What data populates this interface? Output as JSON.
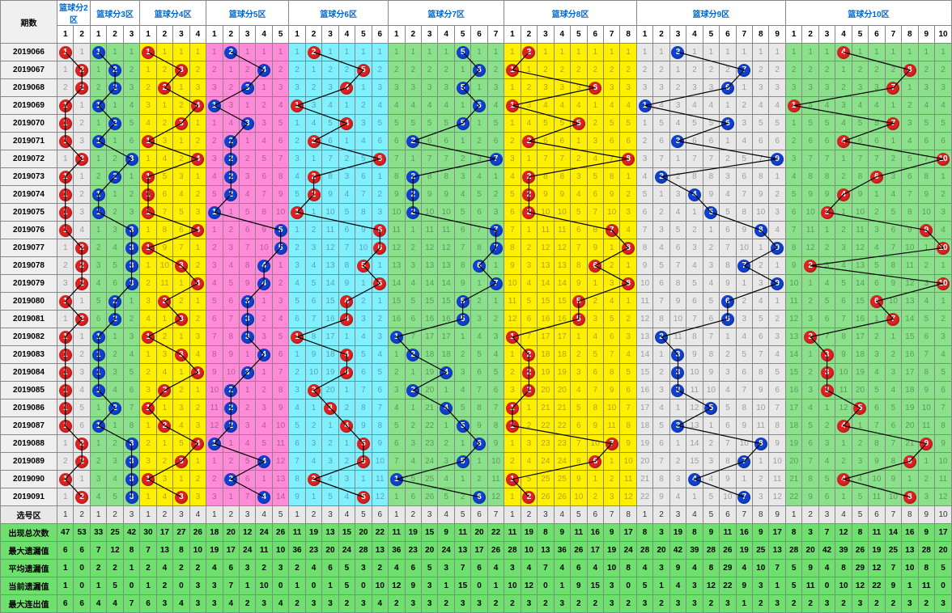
{
  "header": {
    "period_label": "期数"
  },
  "zones": [
    {
      "title": "篮球分2区",
      "cols": [
        1,
        2
      ],
      "bg": "#e8e8e8",
      "ball": "red"
    },
    {
      "title": "篮球分3区",
      "cols": [
        1,
        2,
        3
      ],
      "bg": "#8be08b",
      "ball": "blue"
    },
    {
      "title": "篮球分4区",
      "cols": [
        1,
        2,
        3,
        4
      ],
      "bg": "#fff000",
      "ball": "red"
    },
    {
      "title": "篮球分5区",
      "cols": [
        1,
        2,
        3,
        4,
        5
      ],
      "bg": "#ff8ad8",
      "ball": "blue"
    },
    {
      "title": "篮球分6区",
      "cols": [
        1,
        2,
        3,
        4,
        5,
        6
      ],
      "bg": "#80f0ff",
      "ball": "red"
    },
    {
      "title": "篮球分7区",
      "cols": [
        1,
        2,
        3,
        4,
        5,
        6,
        7
      ],
      "bg": "#8be08b",
      "ball": "blue"
    },
    {
      "title": "篮球分8区",
      "cols": [
        1,
        2,
        3,
        4,
        5,
        6,
        7,
        8
      ],
      "bg": "#fff000",
      "ball": "red"
    },
    {
      "title": "篮球分9区",
      "cols": [
        1,
        2,
        3,
        4,
        5,
        6,
        7,
        8,
        9
      ],
      "bg": "#e8e8e8",
      "ball": "blue"
    },
    {
      "title": "篮球分10区",
      "cols": [
        1,
        2,
        3,
        4,
        5,
        6,
        7,
        8,
        9,
        10
      ],
      "bg": "#8be08b",
      "ball": "red"
    }
  ],
  "rows": [
    {
      "p": "2019066",
      "hits": [
        1,
        1,
        1,
        2,
        2,
        5,
        2,
        3,
        4
      ]
    },
    {
      "p": "2019067",
      "hits": [
        2,
        2,
        3,
        4,
        5,
        6,
        1,
        7,
        8
      ]
    },
    {
      "p": "2019068",
      "hits": [
        2,
        2,
        2,
        3,
        4,
        5,
        6,
        6,
        7
      ]
    },
    {
      "p": "2019069",
      "hits": [
        1,
        1,
        4,
        1,
        1,
        6,
        1,
        1,
        1
      ]
    },
    {
      "p": "2019070",
      "hits": [
        1,
        2,
        3,
        3,
        4,
        5,
        5,
        6,
        7
      ]
    },
    {
      "p": "2019071",
      "hits": [
        1,
        1,
        1,
        2,
        2,
        2,
        2,
        3,
        4
      ]
    },
    {
      "p": "2019072",
      "hits": [
        2,
        3,
        4,
        2,
        6,
        7,
        8,
        9,
        10
      ]
    },
    {
      "p": "2019073",
      "hits": [
        1,
        2,
        1,
        2,
        2,
        2,
        2,
        2,
        6
      ]
    },
    {
      "p": "2019074",
      "hits": [
        1,
        1,
        1,
        2,
        2,
        2,
        2,
        4,
        4
      ]
    },
    {
      "p": "2019075",
      "hits": [
        1,
        1,
        1,
        1,
        1,
        2,
        2,
        5,
        3
      ]
    },
    {
      "p": "2019076",
      "hits": [
        1,
        3,
        4,
        5,
        6,
        7,
        7,
        8,
        9
      ]
    },
    {
      "p": "2019077",
      "hits": [
        2,
        3,
        1,
        5,
        6,
        7,
        8,
        9,
        10
      ]
    },
    {
      "p": "2019078",
      "hits": [
        2,
        3,
        3,
        4,
        5,
        6,
        6,
        7,
        2
      ]
    },
    {
      "p": "2019079",
      "hits": [
        2,
        3,
        4,
        4,
        6,
        7,
        8,
        9,
        10
      ]
    },
    {
      "p": "2019080",
      "hits": [
        1,
        2,
        2,
        3,
        4,
        5,
        5,
        6,
        6
      ]
    },
    {
      "p": "2019081",
      "hits": [
        2,
        2,
        3,
        3,
        4,
        5,
        5,
        6,
        7
      ]
    },
    {
      "p": "2019082",
      "hits": [
        1,
        1,
        1,
        3,
        1,
        1,
        1,
        2,
        2
      ]
    },
    {
      "p": "2019083",
      "hits": [
        1,
        1,
        3,
        4,
        4,
        2,
        2,
        3,
        3
      ]
    },
    {
      "p": "2019084",
      "hits": [
        1,
        1,
        4,
        3,
        4,
        4,
        2,
        3,
        3
      ]
    },
    {
      "p": "2019085",
      "hits": [
        1,
        1,
        2,
        2,
        2,
        2,
        2,
        3,
        3
      ]
    },
    {
      "p": "2019086",
      "hits": [
        1,
        2,
        1,
        2,
        3,
        4,
        1,
        5,
        5
      ]
    },
    {
      "p": "2019087",
      "hits": [
        1,
        1,
        2,
        2,
        4,
        5,
        1,
        3,
        4
      ]
    },
    {
      "p": "2019088",
      "hits": [
        2,
        3,
        4,
        1,
        5,
        6,
        7,
        8,
        9
      ]
    },
    {
      "p": "2019089",
      "hits": [
        2,
        3,
        3,
        4,
        5,
        5,
        6,
        7,
        8
      ]
    },
    {
      "p": "2019090",
      "hits": [
        1,
        3,
        1,
        2,
        2,
        1,
        1,
        4,
        4
      ]
    },
    {
      "p": "2019091",
      "hits": [
        2,
        3,
        3,
        4,
        5,
        6,
        2,
        7,
        8
      ]
    }
  ],
  "selection_row_label": "选号区",
  "stats_labels": [
    "出现总次数",
    "最大遗漏值",
    "平均遗漏值",
    "当前遗漏值",
    "最大连出值"
  ],
  "stats": [
    [
      47,
      53,
      33,
      25,
      42,
      30,
      17,
      27,
      26,
      18,
      20,
      12,
      24,
      26,
      11,
      19,
      13,
      15,
      20,
      22,
      11,
      19,
      15,
      9,
      11,
      20,
      22,
      11,
      19,
      8,
      9,
      11,
      16,
      9,
      17,
      8,
      3,
      19,
      8,
      9,
      11,
      16,
      9,
      17,
      8,
      3,
      7,
      12,
      8,
      11,
      14,
      16,
      9,
      17
    ],
    [
      6,
      6,
      7,
      12,
      8,
      7,
      13,
      8,
      10,
      19,
      17,
      24,
      11,
      10,
      36,
      23,
      20,
      24,
      28,
      13,
      36,
      23,
      20,
      24,
      13,
      17,
      26,
      28,
      10,
      13,
      36,
      26,
      17,
      19,
      24,
      28,
      20,
      42,
      39,
      28,
      26,
      19,
      25,
      13,
      28,
      20,
      42,
      39,
      26,
      19,
      25,
      13,
      28,
      20
    ],
    [
      1,
      0,
      2,
      2,
      1,
      2,
      4,
      2,
      2,
      4,
      6,
      3,
      2,
      3,
      2,
      4,
      6,
      5,
      3,
      2,
      4,
      6,
      5,
      3,
      7,
      6,
      4,
      3,
      4,
      7,
      4,
      6,
      4,
      10,
      8,
      4,
      3,
      9,
      4,
      8,
      29,
      4,
      10,
      7,
      5,
      9,
      4,
      8,
      29,
      12,
      7,
      10,
      8,
      5,
      9,
      4
    ],
    [
      1,
      0,
      1,
      5,
      0,
      1,
      2,
      0,
      3,
      3,
      7,
      1,
      10,
      0,
      1,
      0,
      1,
      5,
      0,
      10,
      12,
      9,
      3,
      1,
      15,
      0,
      1,
      10,
      12,
      0,
      1,
      9,
      15,
      3,
      0,
      5,
      1,
      4,
      3,
      12,
      22,
      9,
      3,
      1,
      5,
      11,
      0,
      10,
      12,
      22,
      9,
      1,
      11,
      0,
      10,
      0,
      3,
      12
    ],
    [
      6,
      6,
      4,
      4,
      7,
      6,
      3,
      4,
      3,
      3,
      4,
      2,
      3,
      4,
      2,
      3,
      3,
      2,
      3,
      4,
      2,
      3,
      3,
      2,
      3,
      3,
      2,
      2,
      3,
      2,
      3,
      2,
      2,
      3,
      2,
      3,
      2,
      3,
      3,
      2,
      3,
      1,
      2,
      3,
      2,
      2,
      3,
      2,
      3,
      2,
      2,
      3,
      2,
      3
    ]
  ],
  "line_style": {
    "stroke": "#000000",
    "width": 1.2
  }
}
